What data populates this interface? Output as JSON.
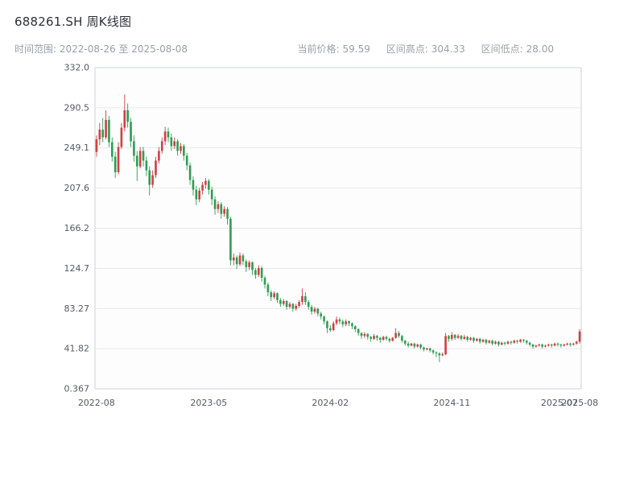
{
  "header": {
    "title": "688261.SH 周K线图",
    "time_range": "时间范围: 2022-08-26 至 2025-08-08",
    "stats": [
      {
        "label": "当前价格:",
        "value": "59.59"
      },
      {
        "label": "区间高点:",
        "value": "304.33"
      },
      {
        "label": "区间低点:",
        "value": "28.00"
      }
    ]
  },
  "chart_data": {
    "type": "candlestick",
    "period": "weekly",
    "title": "688261.SH 周K线图",
    "date_range": [
      "2022-08-26",
      "2025-08-08"
    ],
    "current_price": 59.59,
    "range_high": 304.33,
    "range_low": 28.0,
    "grid": true,
    "up_color": "#cf4140",
    "down_color": "#2e9e53",
    "plot_bg": "#fdfdfe",
    "grid_color": "#e8e8ee",
    "border_color": "#cfd2d9",
    "tick_color": "#555b63",
    "y_range": [
      0.367,
      332.0
    ],
    "y_tick_labels": [
      "332.0",
      "290.5",
      "249.1",
      "207.6",
      "166.2",
      "124.7",
      "83.27",
      "41.82",
      "0.367"
    ],
    "x_ticks": [
      {
        "label": "2022-08",
        "pos": 0.003
      },
      {
        "label": "2023-05",
        "pos": 0.234
      },
      {
        "label": "2024-02",
        "pos": 0.484
      },
      {
        "label": "2024-11",
        "pos": 0.734
      },
      {
        "label": "2025-07",
        "pos": 0.955
      },
      {
        "label": "2025-08",
        "pos": 0.997
      }
    ],
    "ohlc": [
      [
        245,
        262,
        240,
        258
      ],
      [
        258,
        275,
        252,
        268
      ],
      [
        268,
        280,
        255,
        260
      ],
      [
        260,
        288,
        258,
        278
      ],
      [
        278,
        282,
        250,
        255
      ],
      [
        255,
        260,
        235,
        240
      ],
      [
        240,
        245,
        218,
        224
      ],
      [
        224,
        255,
        222,
        250
      ],
      [
        250,
        275,
        248,
        270
      ],
      [
        270,
        304.33,
        266,
        288
      ],
      [
        288,
        295,
        270,
        276
      ],
      [
        276,
        280,
        250,
        256
      ],
      [
        256,
        262,
        235,
        241
      ],
      [
        241,
        246,
        215,
        230
      ],
      [
        230,
        250,
        228,
        246
      ],
      [
        246,
        250,
        230,
        236
      ],
      [
        236,
        240,
        220,
        226
      ],
      [
        226,
        230,
        200,
        211
      ],
      [
        211,
        226,
        208,
        221
      ],
      [
        221,
        240,
        218,
        236
      ],
      [
        236,
        250,
        233,
        246
      ],
      [
        246,
        260,
        243,
        256
      ],
      [
        256,
        271,
        252,
        266
      ],
      [
        266,
        270,
        255,
        260
      ],
      [
        260,
        264,
        246,
        251
      ],
      [
        251,
        260,
        248,
        256
      ],
      [
        256,
        258,
        241,
        246
      ],
      [
        246,
        254,
        243,
        251
      ],
      [
        251,
        253,
        236,
        241
      ],
      [
        241,
        244,
        226,
        231
      ],
      [
        231,
        234,
        211,
        216
      ],
      [
        216,
        220,
        200,
        206
      ],
      [
        206,
        210,
        190,
        196
      ],
      [
        196,
        208,
        193,
        205
      ],
      [
        205,
        214,
        201,
        211
      ],
      [
        211,
        218,
        207,
        215
      ],
      [
        215,
        217,
        201,
        206
      ],
      [
        206,
        209,
        190,
        196
      ],
      [
        196,
        199,
        180,
        186
      ],
      [
        186,
        194,
        182,
        191
      ],
      [
        191,
        193,
        176,
        181
      ],
      [
        181,
        189,
        178,
        186
      ],
      [
        186,
        188,
        170,
        176
      ],
      [
        176,
        178,
        128,
        133
      ],
      [
        133,
        140,
        128,
        136
      ],
      [
        136,
        138,
        124,
        129
      ],
      [
        129,
        141,
        127,
        138
      ],
      [
        138,
        140,
        128,
        132
      ],
      [
        132,
        134,
        121,
        126
      ],
      [
        126,
        133,
        123,
        131
      ],
      [
        131,
        132,
        118,
        123
      ],
      [
        123,
        125,
        114,
        118
      ],
      [
        118,
        128,
        116,
        125
      ],
      [
        125,
        127,
        111,
        115
      ],
      [
        115,
        117,
        104,
        108
      ],
      [
        108,
        110,
        96,
        100
      ],
      [
        100,
        102,
        91,
        95
      ],
      [
        95,
        101,
        93,
        99
      ],
      [
        99,
        100,
        89,
        92
      ],
      [
        92,
        94,
        85,
        88
      ],
      [
        88,
        93,
        86,
        91
      ],
      [
        91,
        92,
        82,
        85
      ],
      [
        85,
        90,
        83,
        88
      ],
      [
        88,
        89,
        80,
        83
      ],
      [
        83,
        88,
        81,
        86
      ],
      [
        86,
        92,
        84,
        90
      ],
      [
        90,
        104,
        87,
        96
      ],
      [
        96,
        100,
        87,
        90
      ],
      [
        90,
        92,
        82,
        85
      ],
      [
        85,
        87,
        77,
        80
      ],
      [
        80,
        85,
        78,
        83
      ],
      [
        83,
        84,
        75,
        78
      ],
      [
        78,
        80,
        72,
        75
      ],
      [
        75,
        76,
        67,
        70
      ],
      [
        70,
        71,
        58,
        63
      ],
      [
        63,
        66,
        59,
        61
      ],
      [
        61,
        70,
        60,
        68
      ],
      [
        68,
        75,
        66,
        72
      ],
      [
        72,
        74,
        67,
        70
      ],
      [
        70,
        72,
        64,
        67
      ],
      [
        67,
        72,
        65,
        70
      ],
      [
        70,
        71,
        65,
        68
      ],
      [
        68,
        69,
        62,
        65
      ],
      [
        65,
        66,
        59,
        62
      ],
      [
        62,
        63,
        55,
        58
      ],
      [
        58,
        59,
        52,
        55
      ],
      [
        55,
        59,
        53,
        57
      ],
      [
        57,
        58,
        51,
        54
      ],
      [
        54,
        55,
        49,
        52
      ],
      [
        52,
        57,
        51,
        55
      ],
      [
        55,
        56,
        50,
        53
      ],
      [
        53,
        54,
        48,
        51
      ],
      [
        51,
        55,
        50,
        54
      ],
      [
        54,
        55,
        50,
        52
      ],
      [
        52,
        53,
        48,
        50
      ],
      [
        50,
        54,
        49,
        53
      ],
      [
        53,
        63,
        52,
        58
      ],
      [
        58,
        60,
        53,
        55
      ],
      [
        55,
        56,
        48,
        50
      ],
      [
        50,
        51,
        45,
        47
      ],
      [
        47,
        49,
        43,
        45
      ],
      [
        45,
        48,
        44,
        47
      ],
      [
        47,
        48,
        42,
        44
      ],
      [
        44,
        47,
        43,
        46
      ],
      [
        46,
        47,
        41,
        43
      ],
      [
        43,
        44,
        39,
        41
      ],
      [
        41,
        43,
        40,
        42
      ],
      [
        42,
        43,
        38,
        40
      ],
      [
        40,
        41,
        36,
        38
      ],
      [
        38,
        39,
        33,
        37
      ],
      [
        37,
        38,
        28,
        35
      ],
      [
        35,
        38,
        34,
        36
      ],
      [
        36,
        58,
        35,
        55
      ],
      [
        55,
        56,
        49,
        52
      ],
      [
        52,
        59,
        50,
        56
      ],
      [
        56,
        57,
        51,
        53
      ],
      [
        53,
        57,
        52,
        55
      ],
      [
        55,
        56,
        50,
        52
      ],
      [
        52,
        56,
        51,
        54
      ],
      [
        54,
        55,
        49,
        51
      ],
      [
        51,
        54,
        50,
        53
      ],
      [
        53,
        54,
        48,
        50
      ],
      [
        50,
        53,
        49,
        52
      ],
      [
        52,
        53,
        47,
        49
      ],
      [
        49,
        52,
        48,
        51
      ],
      [
        51,
        52,
        46,
        48
      ],
      [
        48,
        51,
        47,
        50
      ],
      [
        50,
        51,
        45,
        47
      ],
      [
        47,
        50,
        46,
        49
      ],
      [
        49,
        50,
        44,
        46
      ],
      [
        46,
        49,
        45,
        48
      ],
      [
        48,
        49,
        45,
        47
      ],
      [
        47,
        50,
        46,
        49
      ],
      [
        49,
        50,
        46,
        48
      ],
      [
        48,
        51,
        47,
        50
      ],
      [
        50,
        51,
        47,
        49
      ],
      [
        49,
        52,
        48,
        51
      ],
      [
        51,
        52,
        48,
        50
      ],
      [
        50,
        51,
        46,
        48
      ],
      [
        48,
        49,
        44,
        46
      ],
      [
        46,
        47,
        42,
        44
      ],
      [
        44,
        46,
        43,
        45
      ],
      [
        45,
        47,
        44,
        46
      ],
      [
        46,
        47,
        42,
        44
      ],
      [
        44,
        46,
        43,
        45
      ],
      [
        45,
        47,
        44,
        46
      ],
      [
        46,
        47,
        43,
        45
      ],
      [
        45,
        48,
        44,
        47
      ],
      [
        47,
        48,
        44,
        46
      ],
      [
        46,
        47,
        43,
        45
      ],
      [
        45,
        47,
        44,
        46
      ],
      [
        46,
        48,
        45,
        47
      ],
      [
        47,
        48,
        44,
        46
      ],
      [
        46,
        48,
        45,
        47
      ],
      [
        47,
        50,
        46,
        49
      ],
      [
        49,
        62,
        47,
        59.59
      ]
    ]
  }
}
